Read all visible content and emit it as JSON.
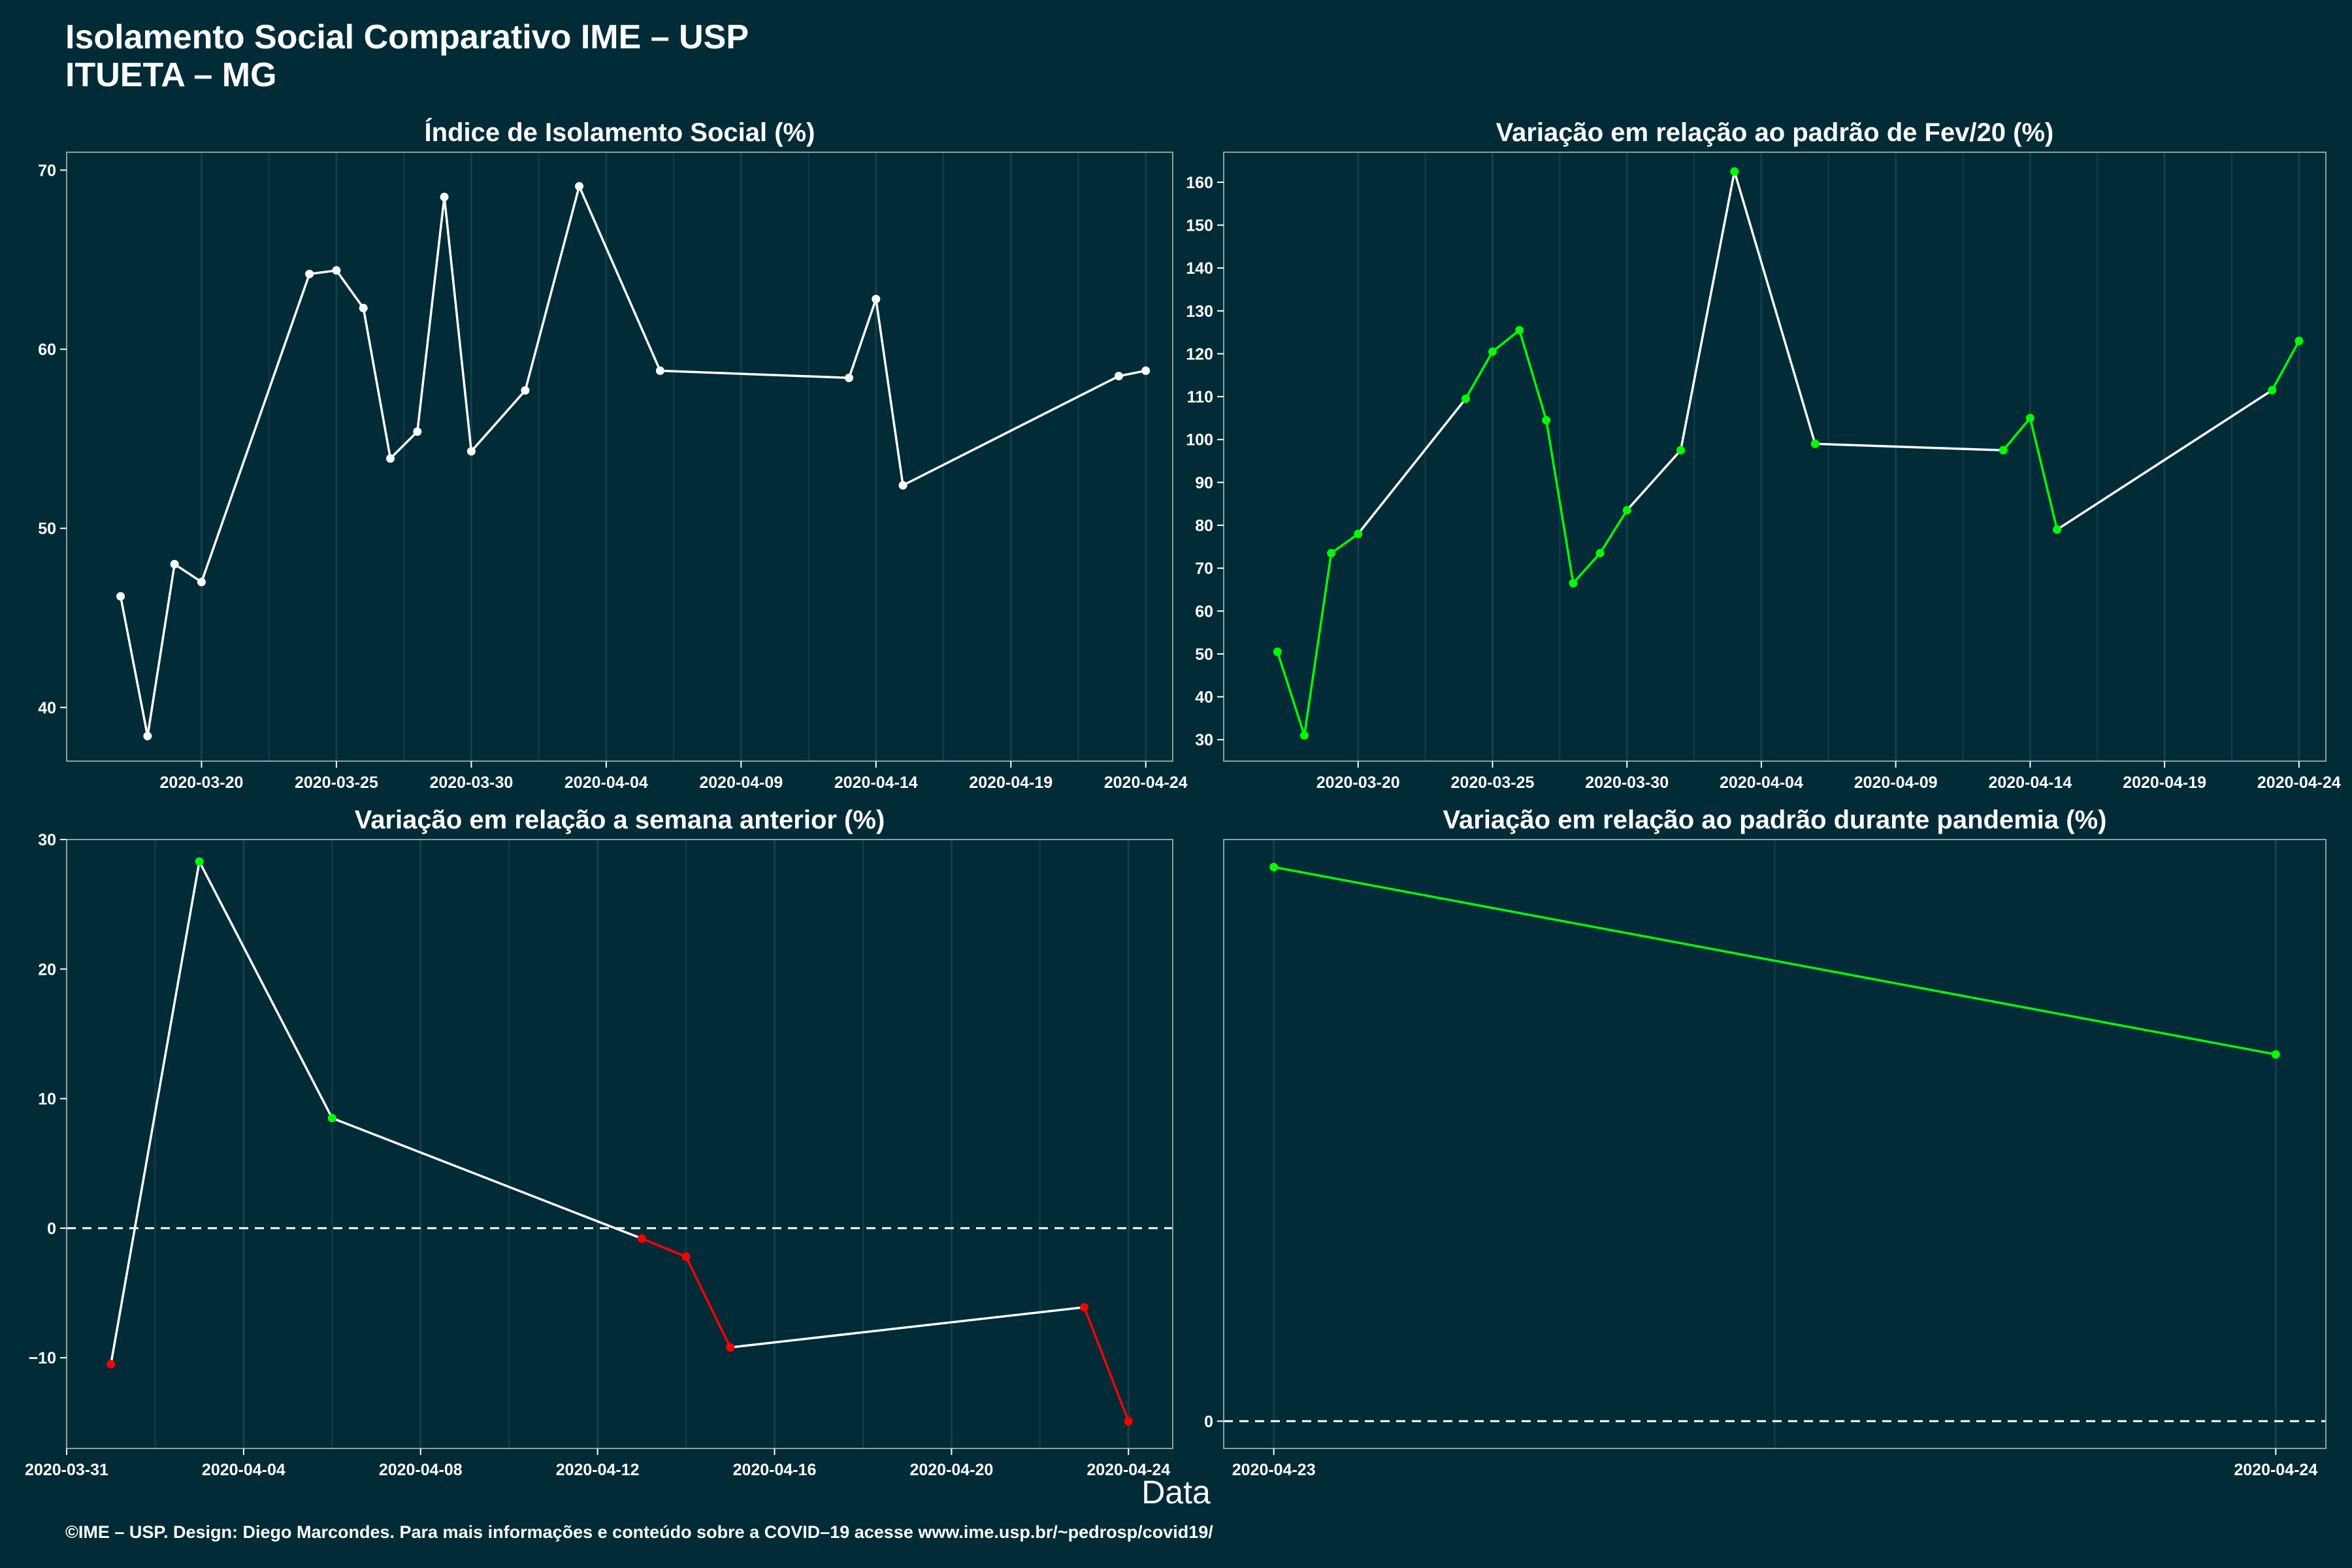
{
  "header": {
    "title_line1": "Isolamento Social Comparativo IME – USP",
    "title_line2": "ITUETA – MG"
  },
  "xlabel": "Data",
  "caption": "©IME – USP. Design: Diego Marcondes. Para mais informações e conteúdo sobre a COVID–19 acesse www.ime.usp.br/~pedrosp/covid19/",
  "colors": {
    "background": "#022b38",
    "line": "#ffffff",
    "up": "#00ff00",
    "down": "#ff0000",
    "axis_border": "#8aa0a6",
    "grid": "#163f4b"
  },
  "chart_data": [
    {
      "type": "line",
      "title": "Índice de Isolamento Social (%)",
      "x_axis": "date",
      "xlim": [
        "2020-03-15",
        "2020-04-25"
      ],
      "ylim": [
        37,
        71
      ],
      "x_ticks": [
        "2020-03-20",
        "2020-03-25",
        "2020-03-30",
        "2020-04-04",
        "2020-04-09",
        "2020-04-14",
        "2020-04-19",
        "2020-04-24"
      ],
      "y_ticks": [
        40,
        50,
        60,
        70
      ],
      "point_color_mode": "white",
      "points": [
        {
          "x": "2020-03-17",
          "y": 46.2
        },
        {
          "x": "2020-03-18",
          "y": 38.4
        },
        {
          "x": "2020-03-19",
          "y": 48.0
        },
        {
          "x": "2020-03-20",
          "y": 47.0
        },
        {
          "x": "2020-03-24",
          "y": 64.2
        },
        {
          "x": "2020-03-25",
          "y": 64.4
        },
        {
          "x": "2020-03-26",
          "y": 62.3
        },
        {
          "x": "2020-03-27",
          "y": 53.9
        },
        {
          "x": "2020-03-28",
          "y": 55.4
        },
        {
          "x": "2020-03-29",
          "y": 68.5
        },
        {
          "x": "2020-03-30",
          "y": 54.3
        },
        {
          "x": "2020-04-01",
          "y": 57.7
        },
        {
          "x": "2020-04-03",
          "y": 69.1
        },
        {
          "x": "2020-04-06",
          "y": 58.8
        },
        {
          "x": "2020-04-13",
          "y": 58.4
        },
        {
          "x": "2020-04-14",
          "y": 62.8
        },
        {
          "x": "2020-04-15",
          "y": 52.4
        },
        {
          "x": "2020-04-23",
          "y": 58.5
        },
        {
          "x": "2020-04-24",
          "y": 58.8
        }
      ]
    },
    {
      "type": "line",
      "title": "Variação em relação ao padrão de Fev/20 (%)",
      "x_axis": "date",
      "xlim": [
        "2020-03-15",
        "2020-04-25"
      ],
      "ylim": [
        25,
        167
      ],
      "x_ticks": [
        "2020-03-20",
        "2020-03-25",
        "2020-03-30",
        "2020-04-04",
        "2020-04-09",
        "2020-04-14",
        "2020-04-19",
        "2020-04-24"
      ],
      "y_ticks": [
        30,
        40,
        50,
        60,
        70,
        80,
        90,
        100,
        110,
        120,
        130,
        140,
        150,
        160
      ],
      "point_color_mode": "trend",
      "points": [
        {
          "x": "2020-03-17",
          "y": 50.5
        },
        {
          "x": "2020-03-18",
          "y": 31.0
        },
        {
          "x": "2020-03-19",
          "y": 73.5
        },
        {
          "x": "2020-03-20",
          "y": 78.0
        },
        {
          "x": "2020-03-24",
          "y": 109.5
        },
        {
          "x": "2020-03-25",
          "y": 120.5
        },
        {
          "x": "2020-03-26",
          "y": 125.5
        },
        {
          "x": "2020-03-27",
          "y": 104.5
        },
        {
          "x": "2020-03-28",
          "y": 66.5
        },
        {
          "x": "2020-03-29",
          "y": 73.5
        },
        {
          "x": "2020-03-30",
          "y": 83.5
        },
        {
          "x": "2020-04-01",
          "y": 97.5
        },
        {
          "x": "2020-04-03",
          "y": 162.5
        },
        {
          "x": "2020-04-06",
          "y": 99.0
        },
        {
          "x": "2020-04-13",
          "y": 97.5
        },
        {
          "x": "2020-04-14",
          "y": 105.0
        },
        {
          "x": "2020-04-15",
          "y": 79.0
        },
        {
          "x": "2020-04-23",
          "y": 111.5
        },
        {
          "x": "2020-04-24",
          "y": 123.0
        }
      ]
    },
    {
      "type": "line",
      "title": "Variação em relação a semana anterior (%)",
      "x_axis": "date",
      "xlim": [
        "2020-03-31",
        "2020-04-25"
      ],
      "ylim": [
        -17,
        30
      ],
      "x_ticks": [
        "2020-03-31",
        "2020-04-04",
        "2020-04-08",
        "2020-04-12",
        "2020-04-16",
        "2020-04-20",
        "2020-04-24"
      ],
      "y_ticks": [
        -10,
        0,
        10,
        20,
        30
      ],
      "zero_line": true,
      "point_color_mode": "sign",
      "points": [
        {
          "x": "2020-04-01",
          "y": -10.5
        },
        {
          "x": "2020-04-03",
          "y": 28.3
        },
        {
          "x": "2020-04-06",
          "y": 8.5
        },
        {
          "x": "2020-04-13",
          "y": -0.8
        },
        {
          "x": "2020-04-14",
          "y": -2.2
        },
        {
          "x": "2020-04-15",
          "y": -9.2
        },
        {
          "x": "2020-04-23",
          "y": -6.1
        },
        {
          "x": "2020-04-24",
          "y": -14.9
        }
      ]
    },
    {
      "type": "line",
      "title": "Variação em relação ao padrão durante pandemia (%)",
      "x_axis": "date",
      "xlim": [
        "2020-04-22T22:48:00",
        "2020-04-24T01:12:00"
      ],
      "ylim": [
        -2.08,
        44.4
      ],
      "x_ticks": [
        "2020-04-23",
        "2020-04-24"
      ],
      "y_ticks": [
        0
      ],
      "zero_line": true,
      "point_color_mode": "green",
      "points": [
        {
          "x": "2020-04-23",
          "y": 42.3
        },
        {
          "x": "2020-04-24",
          "y": 28.0
        }
      ]
    }
  ]
}
